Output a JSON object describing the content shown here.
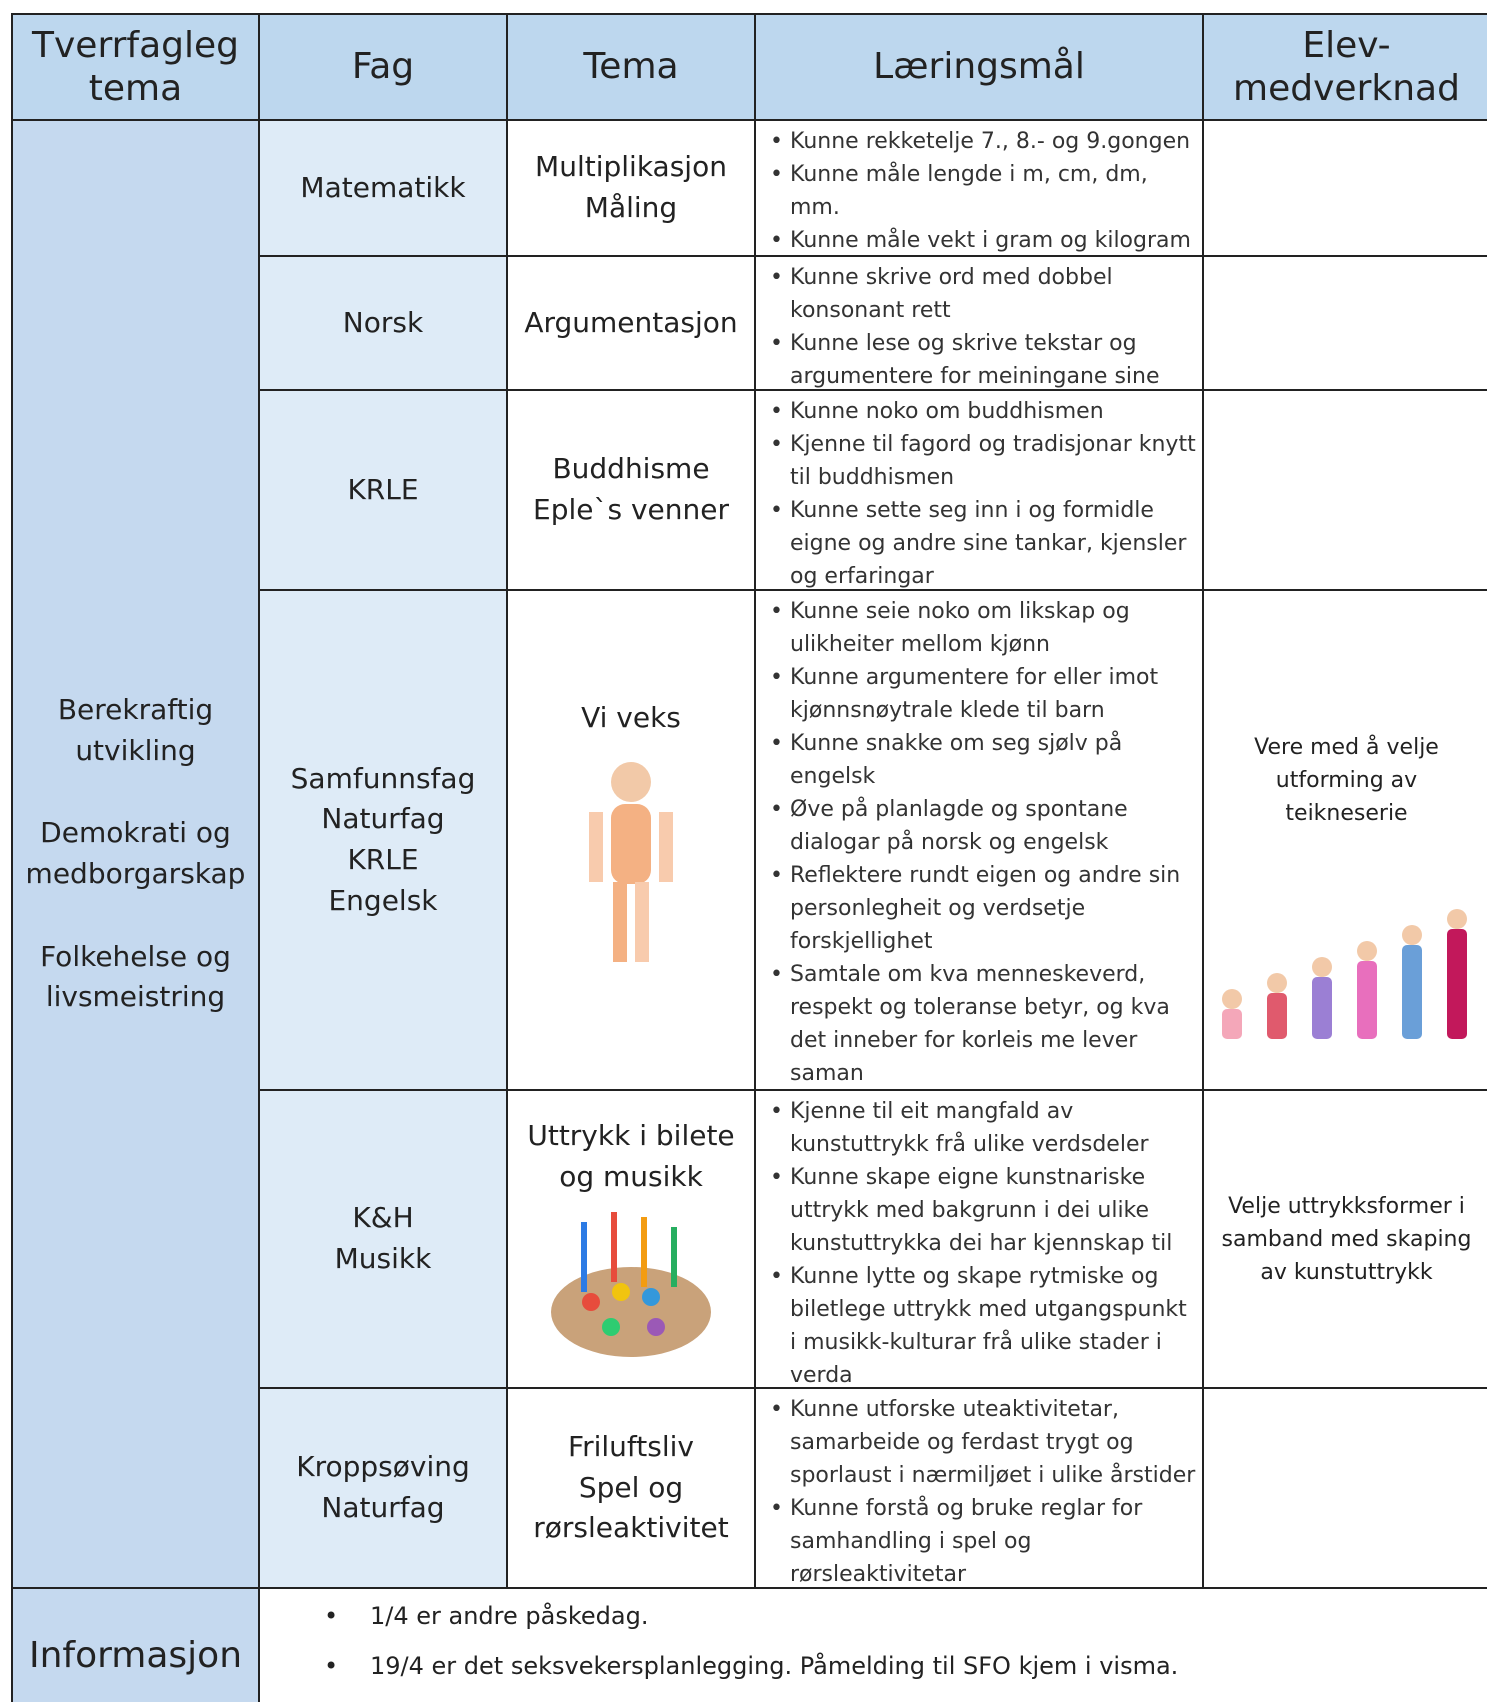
{
  "header": [
    "Tverrfagleg tema",
    "Fag",
    "Tema",
    "Læringsmål",
    "Elev-medverknad"
  ],
  "themes": [
    "Berekraftig utvikling",
    "Demokrati og medborgarskap",
    "Folkehelse og livsmeistring"
  ],
  "rows": [
    {
      "fag": [
        "Matematikk"
      ],
      "tema": [
        "Multiplikasjon",
        "Måling"
      ],
      "goals": [
        "Kunne rekketelje 7., 8.- og 9.gongen",
        "Kunne måle lengde i m, cm, dm, mm.",
        "Kunne måle vekt i gram og kilogram"
      ],
      "elev": ""
    },
    {
      "fag": [
        "Norsk"
      ],
      "tema": [
        "Argumentasjon"
      ],
      "goals": [
        "Kunne skrive ord med dobbel konsonant rett",
        "Kunne lese og skrive tekstar og argumentere for meiningane sine"
      ],
      "elev": ""
    },
    {
      "fag": [
        "KRLE"
      ],
      "tema": [
        "Buddhisme",
        "Eple`s venner"
      ],
      "goals": [
        "Kunne noko om buddhismen",
        "Kjenne til fagord og tradisjonar knytt til buddhismen",
        "Kunne sette seg inn i og formidle eigne og andre sine tankar, kjensler og erfaringar"
      ],
      "elev": ""
    },
    {
      "fag": [
        "Samfunnsfag",
        "Naturfag",
        "KRLE",
        "Engelsk"
      ],
      "tema": [
        "Vi veks"
      ],
      "goals": [
        "Kunne seie noko om likskap og ulikheiter mellom kjønn",
        "Kunne argumentere for eller imot kjønnsnøytrale klede til barn",
        "Kunne snakke om seg sjølv på engelsk",
        "Øve på planlagde og spontane dialogar på norsk og engelsk",
        "Reflektere rundt eigen og andre sin personlegheit og verdsetje forskjellighet",
        "Samtale om kva menneskeverd, respekt og toleranse betyr, og kva det inneber for korleis me lever saman"
      ],
      "elev": "Vere med å velje utforming av teikneserie"
    },
    {
      "fag": [
        "K&H",
        "Musikk"
      ],
      "tema": [
        "Uttrykk i bilete og musikk"
      ],
      "goals": [
        "Kjenne til eit mangfald av kunstuttrykk frå ulike verdsdeler",
        "Kunne skape eigne kunstnariske uttrykk med bakgrunn i dei ulike kunstuttrykka dei har kjennskap til",
        "Kunne lytte og skape rytmiske og biletlege uttrykk med utgangspunkt i musikk-kulturar frå ulike stader i verda"
      ],
      "elev": "Velje uttrykksformer i samband med skaping av kunstuttrykk"
    },
    {
      "fag": [
        "Kroppsøving",
        "Naturfag"
      ],
      "tema": [
        "Friluftsliv",
        "Spel og rørsleaktivitet"
      ],
      "goals": [
        "Kunne utforske uteaktivitetar, samarbeide og ferdast trygt og sporlaust i nærmiljøet i ulike årstider",
        "Kunne forstå og bruke reglar for samhandling i spel og rørsleaktivitetar"
      ],
      "elev": ""
    }
  ],
  "info": {
    "label": "Informasjon",
    "items": [
      "1/4 er andre påskedag.",
      "19/4 er det seksvekersplanlegging. Påmelding til SFO kjem i visma."
    ]
  }
}
